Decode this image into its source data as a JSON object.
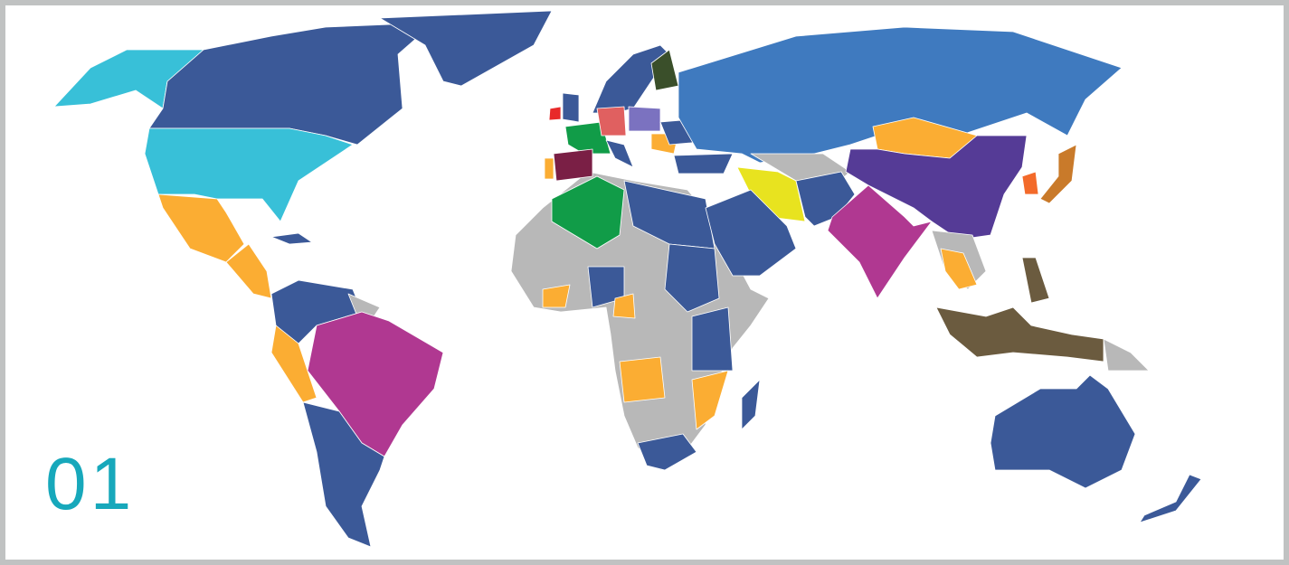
{
  "label": "01",
  "label_color": "#17a8bb",
  "palette": {
    "dark_blue": "#3b5998",
    "light_blue": "#3f7abf",
    "cyan": "#38c0d8",
    "orange": "#fbad33",
    "gray": "#b8b8b8",
    "magenta": "#b03891",
    "purple": "#553b96",
    "green": "#119c48",
    "yellow": "#e8e31f",
    "brown": "#6b5b3f",
    "maroon": "#7a1f45",
    "red": "#e82a2a",
    "coral": "#e06060",
    "lavender": "#7b72c0",
    "dark_green": "#3a4f2a",
    "amber": "#c97a2a",
    "vermilion": "#f36a2a"
  }
}
